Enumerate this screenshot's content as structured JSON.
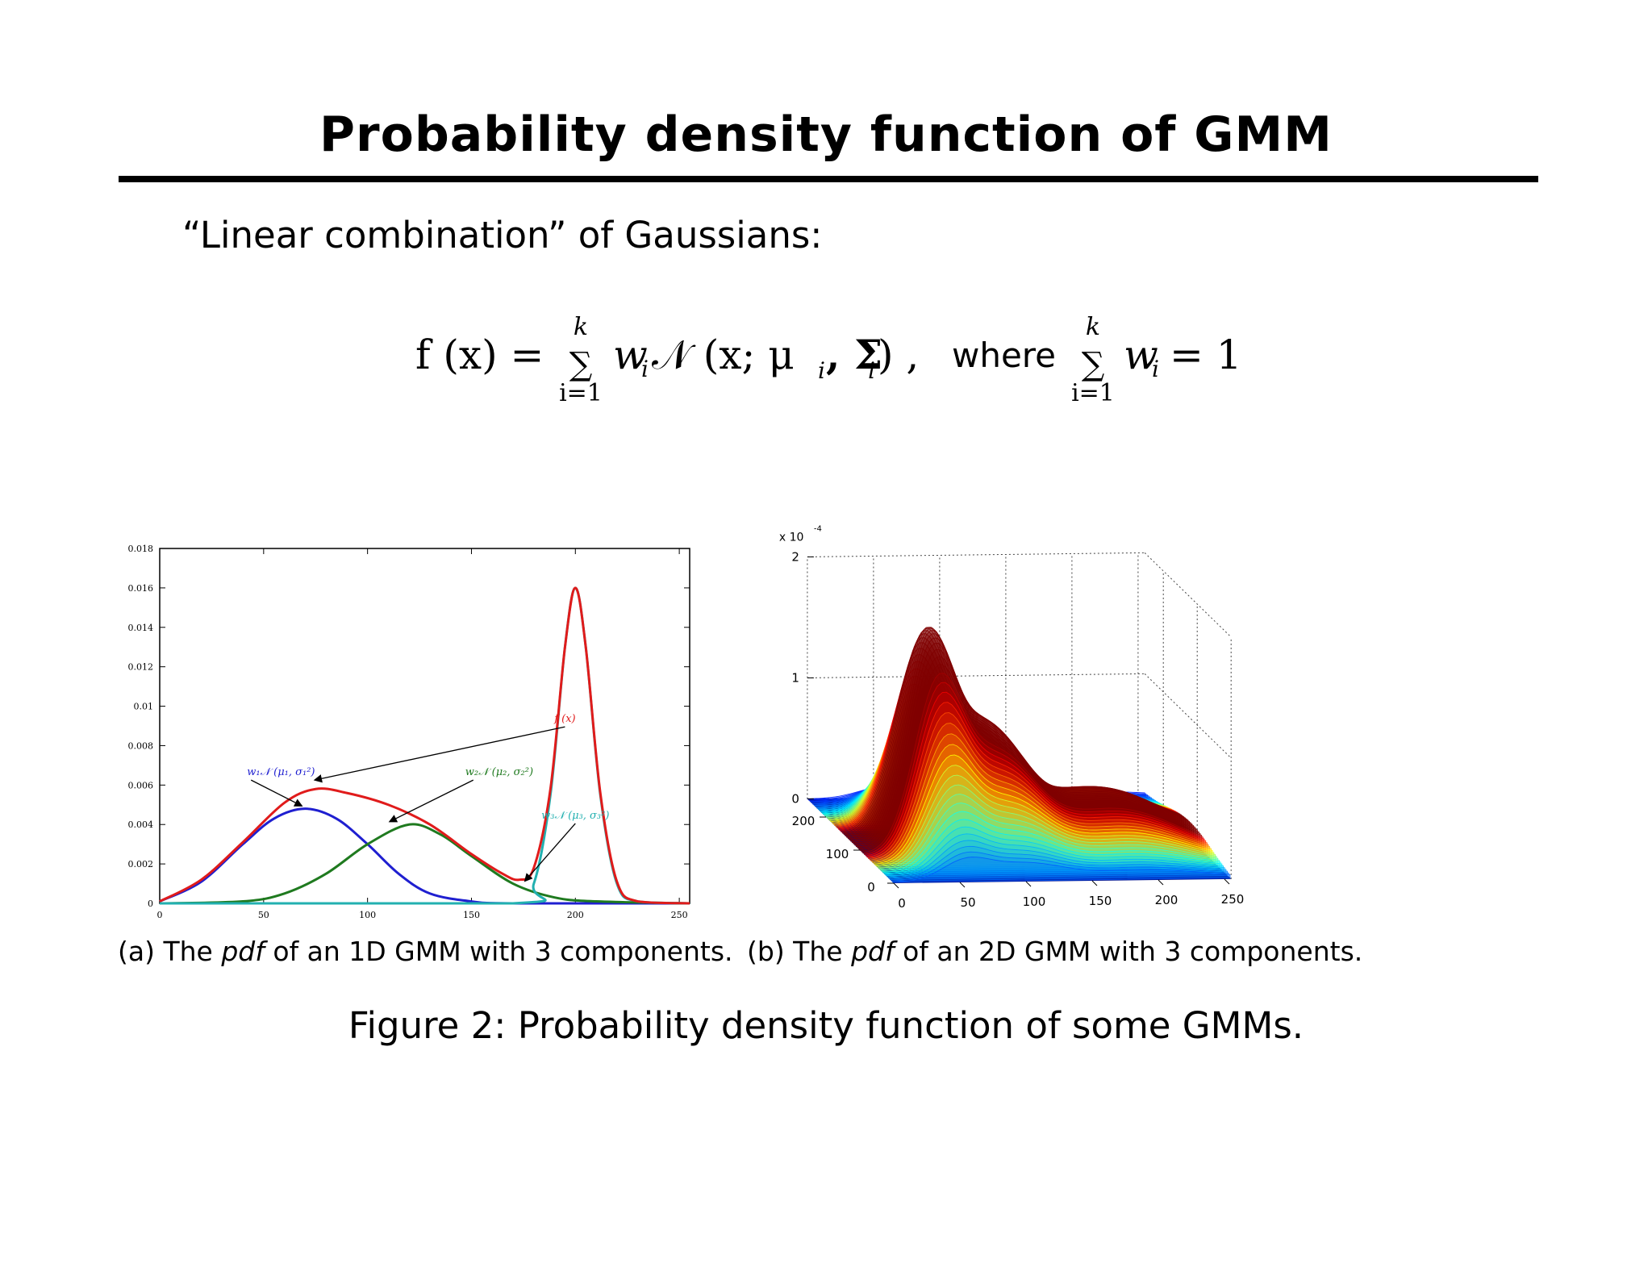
{
  "slide": {
    "title": "Probability density function of GMM",
    "intro": "“Linear combination” of Gaussians:"
  },
  "formula": {
    "lhs": "f (x) =",
    "sum_upper": "k",
    "sum_lower": "i=1",
    "term": "w",
    "term_sub": "i",
    "normal": "𝒩 (x; μ",
    "mu_sub": "i",
    "sigma": ", Σ",
    "sigma_sub": "i",
    "close": ") ,",
    "where": "where",
    "sum2_upper": "k",
    "sum2_lower": "i=1",
    "rhs": "w",
    "rhs_sub": "i",
    "rhs_eq": "= 1"
  },
  "captions": {
    "a_prefix": "(a) The ",
    "a_italic": "pdf",
    "a_suffix": " of an 1D GMM with 3 components.",
    "b_prefix": "(b) The ",
    "b_italic": "pdf",
    "b_suffix": " of an 2D GMM with 3 components.",
    "figure": "Figure 2: Probability density function of some GMMs."
  },
  "chart_data": [
    {
      "type": "line",
      "xlim": [
        0,
        255
      ],
      "ylim": [
        0,
        0.018
      ],
      "x_ticks": [
        "0",
        "50",
        "100",
        "150",
        "200",
        "250"
      ],
      "y_ticks": [
        "0",
        "0.002",
        "0.004",
        "0.006",
        "0.008",
        "0.01",
        "0.012",
        "0.014",
        "0.016",
        "0.018"
      ],
      "colors": {
        "f": "#e01b1b",
        "c1": "#1f1fd0",
        "c2": "#1f7a1f",
        "c3": "#22b0b0"
      },
      "annotations": {
        "f": "f (x)",
        "c1": "w₁𝒩 (μ₁, σ₁²)",
        "c2": "w₂𝒩 (μ₂, σ₂²)",
        "c3": "w₃𝒩 (μ₃, σ₃²)"
      },
      "series": [
        {
          "key": "c1",
          "values": [
            [
              0,
              0.0001
            ],
            [
              20,
              0.0011
            ],
            [
              40,
              0.003
            ],
            [
              55,
              0.0043
            ],
            [
              70,
              0.0048
            ],
            [
              85,
              0.0043
            ],
            [
              100,
              0.003
            ],
            [
              115,
              0.0015
            ],
            [
              130,
              0.0005
            ],
            [
              150,
              0.0001
            ],
            [
              170,
              0.0
            ],
            [
              255,
              0.0
            ]
          ]
        },
        {
          "key": "c2",
          "values": [
            [
              0,
              0.0
            ],
            [
              40,
              0.0001
            ],
            [
              60,
              0.0005
            ],
            [
              80,
              0.0015
            ],
            [
              100,
              0.003
            ],
            [
              120,
              0.004
            ],
            [
              135,
              0.0035
            ],
            [
              150,
              0.0024
            ],
            [
              170,
              0.001
            ],
            [
              190,
              0.0003
            ],
            [
              210,
              0.0001
            ],
            [
              255,
              0.0
            ]
          ]
        },
        {
          "key": "c3",
          "values": [
            [
              0,
              0.0
            ],
            [
              170,
              0.0
            ],
            [
              180,
              0.001
            ],
            [
              188,
              0.0055
            ],
            [
              195,
              0.013
            ],
            [
              200,
              0.016
            ],
            [
              205,
              0.013
            ],
            [
              212,
              0.0055
            ],
            [
              220,
              0.001
            ],
            [
              230,
              0.0001
            ],
            [
              255,
              0.0
            ]
          ]
        },
        {
          "key": "f",
          "values": [
            [
              0,
              0.0001
            ],
            [
              20,
              0.0012
            ],
            [
              40,
              0.0031
            ],
            [
              60,
              0.0051
            ],
            [
              75,
              0.0058
            ],
            [
              90,
              0.0056
            ],
            [
              110,
              0.005
            ],
            [
              130,
              0.004
            ],
            [
              150,
              0.0025
            ],
            [
              165,
              0.0015
            ],
            [
              173,
              0.0012
            ],
            [
              180,
              0.0018
            ],
            [
              188,
              0.0058
            ],
            [
              195,
              0.013
            ],
            [
              200,
              0.016
            ],
            [
              205,
              0.013
            ],
            [
              212,
              0.0056
            ],
            [
              220,
              0.0011
            ],
            [
              230,
              0.0001
            ],
            [
              255,
              0.0
            ]
          ]
        }
      ]
    },
    {
      "type": "surface",
      "z_scale_label": "x 10",
      "z_scale_exp": "-4",
      "z_ticks": [
        "0",
        "1",
        "2"
      ],
      "x_ticks": [
        "0",
        "50",
        "100",
        "150",
        "200",
        "250"
      ],
      "y_ticks": [
        "0",
        "100",
        "200"
      ],
      "base_color": "#00108c",
      "peaks_x": [
        55,
        100,
        190
      ],
      "peak_heights": [
        1.5,
        0.9,
        0.4
      ]
    }
  ]
}
